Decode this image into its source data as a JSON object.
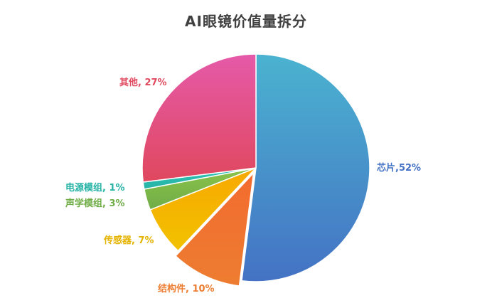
{
  "title": "AI眼镜价值量拆分",
  "chart_data": {
    "type": "pie",
    "title": "AI眼镜价值量拆分",
    "start_angle_deg": 0,
    "direction": "clockwise",
    "exploded": "结构件",
    "slices": [
      {
        "name": "芯片",
        "value": 52,
        "label": "芯片,52%",
        "color_top": "#4bb3d0",
        "color_bottom": "#4472c4",
        "label_color": "#4472c4"
      },
      {
        "name": "结构件",
        "value": 10,
        "label": "结构件, 10%",
        "color_top": "#f36b2f",
        "color_bottom": "#ed7d31",
        "label_color": "#ed7d31"
      },
      {
        "name": "传感器",
        "value": 7,
        "label": "传感器, 7%",
        "color_top": "#f7a800",
        "color_bottom": "#f2c200",
        "label_color": "#e5b400"
      },
      {
        "name": "声学模组",
        "value": 3,
        "label": "声学模组, 3%",
        "color_top": "#8ac24a",
        "color_bottom": "#70ad47",
        "label_color": "#70ad47"
      },
      {
        "name": "电源模组",
        "value": 1,
        "label": "电源模组, 1%",
        "color_top": "#2ec4b6",
        "color_bottom": "#26b3a6",
        "label_color": "#26b3a6"
      },
      {
        "name": "其他",
        "value": 27,
        "label": "其他, 27%",
        "color_top": "#e55aa9",
        "color_bottom": "#e0485e",
        "label_color": "#e0485e"
      }
    ]
  }
}
